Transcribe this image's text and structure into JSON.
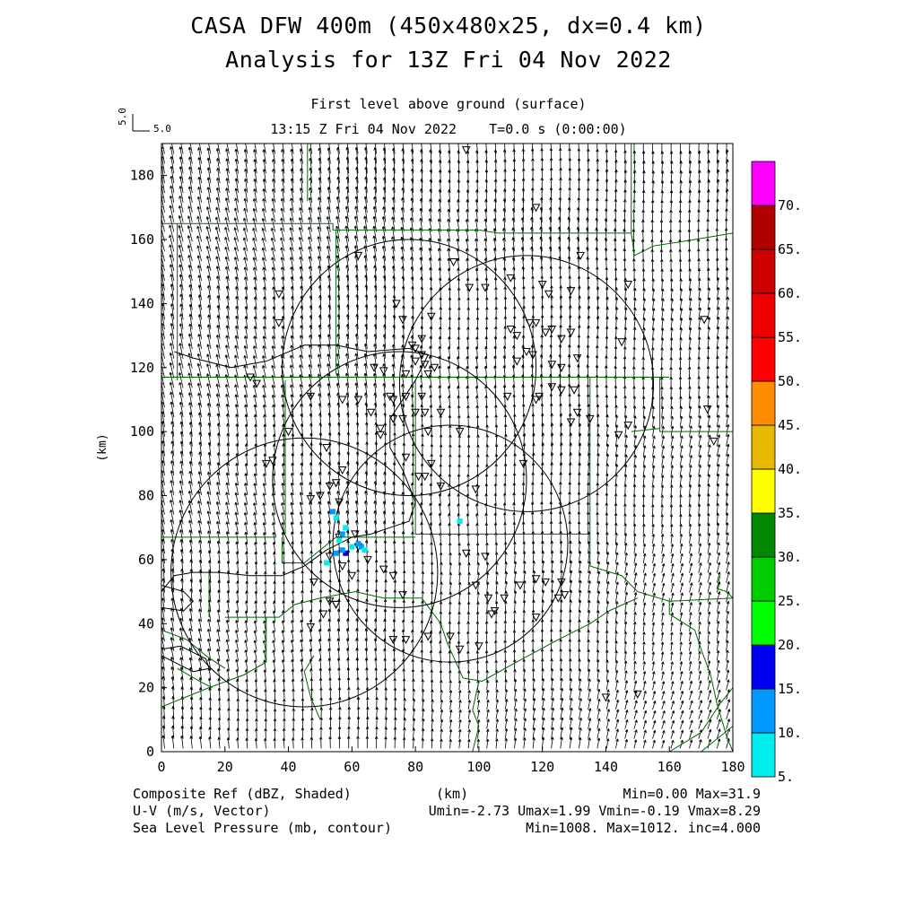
{
  "header": {
    "title": "CASA DFW 400m (450x480x25, dx=0.4 km)",
    "subtitle": "Analysis for 13Z Fri 04 Nov 2022",
    "level": "First level above ground (surface)",
    "time": "13:15 Z Fri 04 Nov 2022    T=0.0 s (0:00:00)",
    "ref_vector_vertical": "5.0",
    "ref_vector_horizontal": "5.0"
  },
  "chart_data": {
    "type": "heatmap",
    "xlabel": "(km)",
    "ylabel": "(km)",
    "xlim": [
      0,
      180
    ],
    "ylim": [
      0,
      190
    ],
    "xticks": [
      "0",
      "20",
      "40",
      "60",
      "80",
      "100",
      "120",
      "140",
      "160",
      "180"
    ],
    "yticks": [
      "0",
      "20",
      "40",
      "60",
      "80",
      "100",
      "120",
      "140",
      "160",
      "180"
    ],
    "colorbar": {
      "labels": [
        "5.",
        "10.",
        "15.",
        "20.",
        "25.",
        "30.",
        "35.",
        "40.",
        "45.",
        "50.",
        "55.",
        "60.",
        "65.",
        "70."
      ],
      "colors": [
        "#00eeee",
        "#0099ff",
        "#0000ee",
        "#00ff00",
        "#00cc00",
        "#008800",
        "#ffff00",
        "#e6b800",
        "#ff8c00",
        "#ff0000",
        "#ee0000",
        "#cc0000",
        "#b00000",
        "#ff00ff"
      ]
    },
    "reflectivity_points": [
      {
        "x": 54,
        "y": 75,
        "v": 10
      },
      {
        "x": 55,
        "y": 73,
        "v": 7
      },
      {
        "x": 57,
        "y": 68,
        "v": 12
      },
      {
        "x": 58,
        "y": 70,
        "v": 9
      },
      {
        "x": 56,
        "y": 66,
        "v": 8
      },
      {
        "x": 58,
        "y": 62,
        "v": 16
      },
      {
        "x": 57,
        "y": 63,
        "v": 12
      },
      {
        "x": 55,
        "y": 62,
        "v": 10
      },
      {
        "x": 60,
        "y": 64,
        "v": 8
      },
      {
        "x": 62,
        "y": 65,
        "v": 12
      },
      {
        "x": 63,
        "y": 64,
        "v": 10
      },
      {
        "x": 64,
        "y": 63,
        "v": 9
      },
      {
        "x": 52,
        "y": 59,
        "v": 8
      },
      {
        "x": 94,
        "y": 72,
        "v": 8
      }
    ],
    "radar_rings": [
      {
        "x": 78,
        "y": 120,
        "r": 40
      },
      {
        "x": 115,
        "y": 115,
        "r": 40
      },
      {
        "x": 75,
        "y": 85,
        "r": 40
      },
      {
        "x": 91,
        "y": 65,
        "r": 37
      },
      {
        "x": 45,
        "y": 56,
        "r": 42
      }
    ],
    "contour_path": [
      [
        4,
        125
      ],
      [
        10,
        123
      ],
      [
        22,
        120
      ],
      [
        33,
        122
      ],
      [
        45,
        127
      ],
      [
        55,
        127
      ],
      [
        65,
        125
      ],
      [
        78,
        126
      ],
      [
        84,
        124
      ],
      [
        80,
        116
      ],
      [
        72,
        104
      ],
      [
        72,
        95
      ],
      [
        76,
        88
      ],
      [
        80,
        78
      ],
      [
        78,
        72
      ],
      [
        72,
        70
      ],
      [
        66,
        68
      ],
      [
        60,
        67
      ],
      [
        52,
        63
      ],
      [
        45,
        58
      ],
      [
        38,
        55
      ],
      [
        28,
        55
      ],
      [
        18,
        56
      ],
      [
        10,
        56
      ],
      [
        4,
        55
      ],
      [
        0,
        50
      ]
    ],
    "contour_loop": [
      [
        0,
        52
      ],
      [
        7,
        50
      ],
      [
        10,
        47
      ],
      [
        7,
        44
      ],
      [
        0,
        45
      ]
    ],
    "contour_loop2": [
      [
        0,
        30
      ],
      [
        10,
        25
      ],
      [
        15,
        26
      ],
      [
        14,
        29
      ],
      [
        6,
        33
      ],
      [
        0,
        32
      ]
    ],
    "boundaries": [
      [
        [
          46,
          190
        ],
        [
          46,
          172
        ]
      ],
      [
        [
          0,
          165
        ],
        [
          24,
          165
        ],
        [
          36,
          165
        ],
        [
          54,
          165
        ],
        [
          54,
          163
        ],
        [
          73,
          163
        ],
        [
          88,
          163
        ],
        [
          100,
          163
        ],
        [
          106,
          162
        ],
        [
          148,
          162
        ],
        [
          148,
          190
        ]
      ],
      [
        [
          148,
          162
        ],
        [
          149,
          155
        ],
        [
          155,
          158
        ],
        [
          168,
          160
        ],
        [
          180,
          162
        ]
      ],
      [
        [
          5,
          165
        ],
        [
          5,
          116
        ]
      ],
      [
        [
          55,
          163
        ],
        [
          55,
          118
        ]
      ],
      [
        [
          0,
          117
        ],
        [
          50,
          117
        ],
        [
          100,
          117
        ],
        [
          138,
          117
        ],
        [
          155,
          117
        ],
        [
          160,
          117
        ]
      ],
      [
        [
          80,
          116
        ],
        [
          80,
          68
        ],
        [
          90,
          68
        ],
        [
          110,
          68
        ],
        [
          130,
          68
        ],
        [
          135,
          68
        ],
        [
          135,
          117
        ]
      ],
      [
        [
          39,
          116
        ],
        [
          39,
          68
        ]
      ],
      [
        [
          0,
          67
        ],
        [
          20,
          67
        ],
        [
          36,
          67
        ],
        [
          36,
          68
        ]
      ],
      [
        [
          38,
          67
        ],
        [
          38,
          59
        ],
        [
          45,
          59
        ],
        [
          55,
          67
        ],
        [
          62,
          67
        ],
        [
          80,
          67
        ]
      ],
      [
        [
          135,
          68
        ],
        [
          135,
          58
        ],
        [
          145,
          55
        ],
        [
          150,
          50
        ],
        [
          160,
          47
        ],
        [
          180,
          48
        ]
      ],
      [
        [
          157,
          117
        ],
        [
          157,
          100
        ],
        [
          180,
          100
        ]
      ],
      [
        [
          148,
          100
        ],
        [
          157,
          101
        ]
      ],
      [
        [
          180,
          48
        ],
        [
          178,
          50
        ],
        [
          175,
          51
        ],
        [
          176,
          55
        ]
      ],
      [
        [
          20,
          42
        ],
        [
          33,
          42
        ],
        [
          33,
          28
        ],
        [
          26,
          24
        ],
        [
          15,
          20
        ],
        [
          0,
          14
        ]
      ],
      [
        [
          33,
          42
        ],
        [
          37,
          42
        ],
        [
          42,
          46
        ],
        [
          50,
          48
        ],
        [
          61,
          50
        ],
        [
          70,
          48
        ],
        [
          82,
          48
        ],
        [
          88,
          40
        ],
        [
          90,
          34
        ],
        [
          95,
          23
        ]
      ],
      [
        [
          0,
          38
        ],
        [
          8,
          35
        ],
        [
          14,
          30
        ],
        [
          20,
          26
        ]
      ],
      [
        [
          15,
          57
        ],
        [
          15,
          42
        ]
      ],
      [
        [
          95,
          23
        ],
        [
          101,
          22
        ],
        [
          110,
          27
        ],
        [
          125,
          35
        ],
        [
          135,
          40
        ],
        [
          141,
          44
        ],
        [
          150,
          48
        ]
      ],
      [
        [
          160,
          48
        ],
        [
          160,
          43
        ],
        [
          168,
          38
        ],
        [
          170,
          32
        ],
        [
          173,
          24
        ],
        [
          175,
          15
        ],
        [
          178,
          5
        ],
        [
          180,
          0
        ]
      ],
      [
        [
          100,
          22
        ],
        [
          98,
          13
        ],
        [
          100,
          8
        ],
        [
          98,
          0
        ]
      ],
      [
        [
          48,
          30
        ],
        [
          45,
          25
        ],
        [
          47,
          17
        ],
        [
          50,
          10
        ]
      ],
      [
        [
          160,
          0
        ],
        [
          170,
          6
        ],
        [
          176,
          15
        ],
        [
          180,
          20
        ]
      ],
      [
        [
          170,
          0
        ],
        [
          180,
          8
        ]
      ],
      [
        [
          5,
          26
        ],
        [
          12,
          22
        ],
        [
          16,
          20
        ]
      ]
    ],
    "stations": [
      [
        96,
        188
      ],
      [
        118,
        170
      ],
      [
        62,
        155
      ],
      [
        132,
        155
      ],
      [
        92,
        153
      ],
      [
        110,
        148
      ],
      [
        120,
        146
      ],
      [
        102,
        145
      ],
      [
        97,
        145
      ],
      [
        37,
        143
      ],
      [
        147,
        146
      ],
      [
        122,
        143
      ],
      [
        129,
        144
      ],
      [
        74,
        140
      ],
      [
        37,
        134
      ],
      [
        76,
        135
      ],
      [
        85,
        136
      ],
      [
        110,
        132
      ],
      [
        116,
        134
      ],
      [
        118,
        134
      ],
      [
        126,
        129
      ],
      [
        145,
        128
      ],
      [
        112,
        130
      ],
      [
        121,
        131
      ],
      [
        123,
        132
      ],
      [
        129,
        131
      ],
      [
        115,
        125
      ],
      [
        117,
        124
      ],
      [
        123,
        121
      ],
      [
        126,
        120
      ],
      [
        131,
        123
      ],
      [
        112,
        122
      ],
      [
        123,
        114
      ],
      [
        126,
        113
      ],
      [
        130,
        113
      ],
      [
        109,
        111
      ],
      [
        118,
        110
      ],
      [
        119,
        111
      ],
      [
        131,
        106
      ],
      [
        76,
        104
      ],
      [
        82,
        111
      ],
      [
        83,
        106
      ],
      [
        77,
        111
      ],
      [
        72,
        111
      ],
      [
        62,
        110
      ],
      [
        57,
        110
      ],
      [
        47,
        111
      ],
      [
        66,
        106
      ],
      [
        69,
        101
      ],
      [
        73,
        104
      ],
      [
        80,
        106
      ],
      [
        88,
        106
      ],
      [
        84,
        100
      ],
      [
        94,
        100
      ],
      [
        129,
        103
      ],
      [
        135,
        104
      ],
      [
        147,
        102
      ],
      [
        144,
        99
      ],
      [
        171,
        135
      ],
      [
        172,
        107
      ],
      [
        174,
        97
      ],
      [
        33,
        90
      ],
      [
        35,
        91
      ],
      [
        69,
        99
      ],
      [
        77,
        92
      ],
      [
        85,
        90
      ],
      [
        83,
        86
      ],
      [
        88,
        83
      ],
      [
        99,
        82
      ],
      [
        114,
        90
      ],
      [
        81,
        86
      ],
      [
        53,
        83
      ],
      [
        57,
        88
      ],
      [
        55,
        84
      ],
      [
        50,
        80
      ],
      [
        30,
        115
      ],
      [
        28,
        117
      ],
      [
        67,
        120
      ],
      [
        70,
        119
      ],
      [
        77,
        118
      ],
      [
        84,
        118
      ],
      [
        86,
        120
      ],
      [
        79,
        127
      ],
      [
        80,
        126
      ],
      [
        82,
        124
      ],
      [
        80,
        122
      ],
      [
        83,
        121
      ],
      [
        82,
        129
      ],
      [
        73,
        110
      ],
      [
        40,
        100
      ],
      [
        52,
        95
      ],
      [
        47,
        79
      ],
      [
        56,
        78
      ],
      [
        56,
        67
      ],
      [
        61,
        68
      ],
      [
        62,
        64
      ],
      [
        53,
        61
      ],
      [
        60,
        55
      ],
      [
        96,
        62
      ],
      [
        102,
        61
      ],
      [
        99,
        52
      ],
      [
        103,
        48
      ],
      [
        118,
        54
      ],
      [
        121,
        53
      ],
      [
        126,
        53
      ],
      [
        127,
        49
      ],
      [
        125,
        48
      ],
      [
        113,
        52
      ],
      [
        76,
        49
      ],
      [
        73,
        55
      ],
      [
        70,
        57
      ],
      [
        53,
        47
      ],
      [
        55,
        46
      ],
      [
        47,
        39
      ],
      [
        51,
        43
      ],
      [
        57,
        58
      ],
      [
        55,
        46
      ],
      [
        65,
        60
      ],
      [
        48,
        53
      ],
      [
        108,
        48
      ],
      [
        118,
        42
      ],
      [
        105,
        44
      ],
      [
        104,
        43
      ],
      [
        100,
        33
      ],
      [
        91,
        36
      ],
      [
        73,
        35
      ],
      [
        77,
        35
      ],
      [
        84,
        36
      ],
      [
        94,
        32
      ],
      [
        150,
        18
      ],
      [
        140,
        17
      ]
    ],
    "footer": {
      "field1": "Composite Ref (dBZ, Shaded)",
      "field2": "U-V (m/s, Vector)",
      "field3": "Sea Level Pressure (mb, contour)",
      "xunit": "(km)",
      "stats1": "Min=0.00 Max=31.9",
      "stats2": "Umin=-2.73 Umax=1.99 Vmin=-0.19 Vmax=8.29",
      "stats3": "Min=1008. Max=1012. inc=4.000"
    }
  }
}
